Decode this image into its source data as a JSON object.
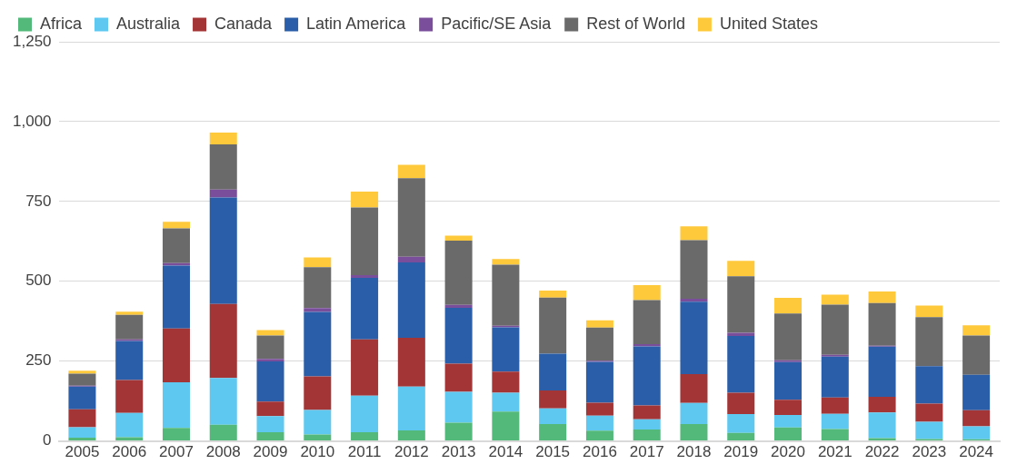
{
  "chart_data": {
    "type": "bar",
    "stacked": true,
    "legend": "top left",
    "grid": "y",
    "categories": [
      "2005",
      "2006",
      "2007",
      "2008",
      "2009",
      "2010",
      "2011",
      "2012",
      "2013",
      "2014",
      "2015",
      "2016",
      "2017",
      "2018",
      "2019",
      "2020",
      "2021",
      "2022",
      "2023",
      "2024"
    ],
    "ylim": [
      0,
      1250
    ],
    "yticks": [
      0,
      {
        "value": 250,
        "label": "250"
      },
      {
        "value": 500,
        "label": "500"
      },
      {
        "value": 750,
        "label": "750"
      },
      {
        "value": 1000,
        "label": "1,000"
      },
      {
        "value": 1250,
        "label": "1,250"
      }
    ],
    "series": [
      {
        "name": "Africa",
        "color": "#52b97a",
        "values": [
          10,
          12,
          41,
          51,
          27,
          20,
          27,
          33,
          57,
          92,
          53,
          32,
          36,
          53,
          25,
          42,
          37,
          9,
          6,
          5
        ]
      },
      {
        "name": "Australia",
        "color": "#5ec8f0",
        "values": [
          33,
          76,
          143,
          146,
          51,
          77,
          115,
          137,
          97,
          59,
          49,
          47,
          32,
          66,
          59,
          39,
          48,
          80,
          54,
          41
        ]
      },
      {
        "name": "Canada",
        "color": "#a33536",
        "values": [
          56,
          103,
          168,
          232,
          45,
          105,
          176,
          153,
          88,
          66,
          56,
          41,
          43,
          90,
          67,
          48,
          51,
          49,
          57,
          50
        ]
      },
      {
        "name": "Latin America",
        "color": "#2a5ea8",
        "values": [
          71,
          122,
          197,
          333,
          126,
          202,
          193,
          236,
          175,
          139,
          115,
          128,
          185,
          227,
          178,
          118,
          128,
          157,
          117,
          111
        ]
      },
      {
        "name": "Pacific/SE Asia",
        "color": "#7b4e9c",
        "values": [
          3,
          5,
          8,
          25,
          8,
          12,
          8,
          18,
          9,
          5,
          0,
          3,
          7,
          9,
          10,
          6,
          6,
          3,
          0,
          0
        ]
      },
      {
        "name": "Rest of World",
        "color": "#6a6a6a",
        "values": [
          38,
          77,
          109,
          142,
          73,
          128,
          212,
          246,
          201,
          191,
          176,
          104,
          138,
          184,
          177,
          146,
          157,
          134,
          154,
          123
        ]
      },
      {
        "name": "United States",
        "color": "#fec93a",
        "values": [
          9,
          10,
          20,
          37,
          17,
          31,
          50,
          42,
          16,
          18,
          22,
          23,
          47,
          43,
          48,
          49,
          31,
          36,
          36,
          32
        ]
      }
    ]
  }
}
